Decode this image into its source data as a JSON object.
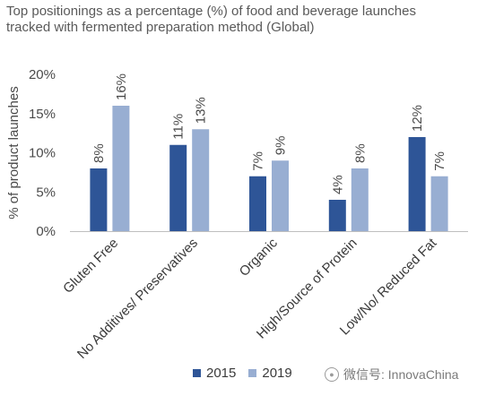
{
  "title_lines": [
    "Top positionings as a percentage (%) of food and beverage launches",
    "tracked with fermented preparation method (Global)"
  ],
  "watermark": {
    "text": "微信号: InnovaChina",
    "icon": "wechat-icon"
  },
  "chart_data": {
    "type": "bar",
    "ylabel": "% of product launches",
    "xlabel": "",
    "ylim": [
      0,
      20
    ],
    "yticks": [
      "0%",
      "5%",
      "10%",
      "15%",
      "20%"
    ],
    "ytick_values": [
      0,
      5,
      10,
      15,
      20
    ],
    "grid": false,
    "legend_position": "bottom",
    "categories": [
      "Gluten Free",
      "No Additives/ Preservatives",
      "Organic",
      "High/Source of Protein",
      "Low/No/ Reduced Fat"
    ],
    "series": [
      {
        "name": "2015",
        "color": "#2e5597",
        "values": [
          8,
          11,
          7,
          4,
          12
        ],
        "labels": [
          "8%",
          "11%",
          "7%",
          "4%",
          "12%"
        ]
      },
      {
        "name": "2019",
        "color": "#98aed2",
        "values": [
          16,
          13,
          9,
          8,
          7
        ],
        "labels": [
          "16%",
          "13%",
          "9%",
          "8%",
          "7%"
        ]
      }
    ]
  }
}
